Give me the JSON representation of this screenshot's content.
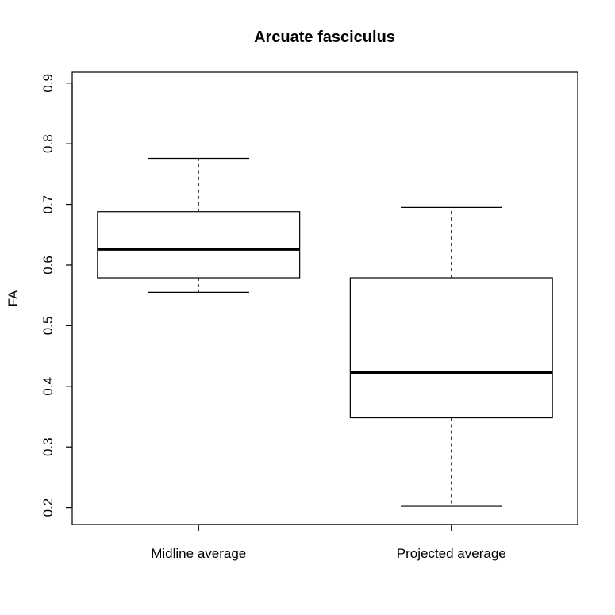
{
  "chart_data": {
    "type": "boxplot",
    "title": "Arcuate fasciculus",
    "xlabel": "",
    "ylabel": "FA",
    "ylim": [
      0.172,
      0.918
    ],
    "yticks": [
      {
        "value": 0.2,
        "label": "0.2"
      },
      {
        "value": 0.3,
        "label": "0.3"
      },
      {
        "value": 0.4,
        "label": "0.4"
      },
      {
        "value": 0.5,
        "label": "0.5"
      },
      {
        "value": 0.6,
        "label": "0.6"
      },
      {
        "value": 0.7,
        "label": "0.7"
      },
      {
        "value": 0.8,
        "label": "0.8"
      },
      {
        "value": 0.9,
        "label": "0.9"
      }
    ],
    "categories": [
      "Midline average",
      "Projected average"
    ],
    "boxes": [
      {
        "category": "Midline average",
        "whisker_low": 0.555,
        "q1": 0.579,
        "median": 0.626,
        "q3": 0.688,
        "whisker_high": 0.776
      },
      {
        "category": "Projected average",
        "whisker_low": 0.202,
        "q1": 0.348,
        "median": 0.423,
        "q3": 0.579,
        "whisker_high": 0.695
      }
    ],
    "grid": false,
    "colors": {
      "box_fill": "#ffffff",
      "stroke": "#000000"
    }
  }
}
